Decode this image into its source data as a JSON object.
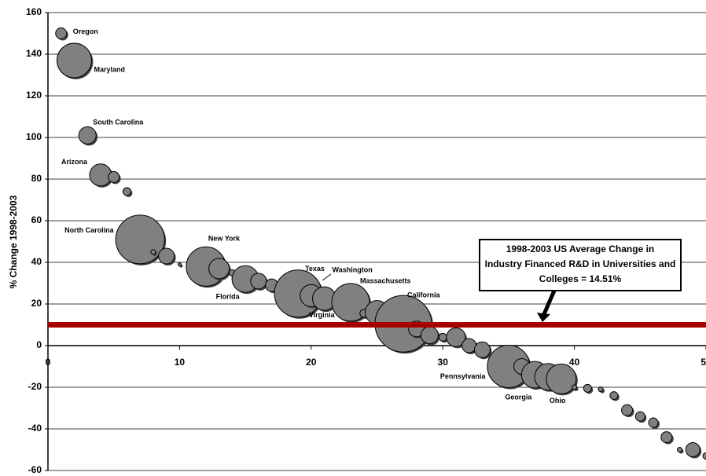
{
  "chart_data": {
    "type": "bubble",
    "y_label": "% Change 1998-2003",
    "x": [
      1,
      2,
      3,
      4,
      5,
      6,
      7,
      8,
      9,
      10,
      11,
      12,
      13,
      14,
      15,
      16,
      17,
      18,
      19,
      20,
      21,
      23,
      24,
      25,
      27,
      28,
      29,
      30,
      31,
      32,
      33,
      35,
      36,
      37,
      38,
      39,
      40,
      41,
      42,
      43,
      44,
      45,
      46,
      47,
      48,
      49,
      50
    ],
    "values": [
      150,
      137,
      101,
      82,
      81,
      74,
      51,
      45,
      43,
      39,
      38,
      38,
      37,
      35,
      32,
      31,
      29,
      28,
      25,
      24,
      22.6,
      20.8,
      15.5,
      16,
      10.5,
      8,
      5,
      4,
      4,
      0,
      -2,
      -10,
      -10,
      -14,
      -15,
      -16,
      -20,
      -20.5,
      -21,
      -24,
      -31,
      -34,
      -37,
      -44,
      -50,
      -50,
      -53
    ],
    "sizes": [
      7,
      22,
      11,
      14,
      7,
      5,
      31,
      3,
      10,
      2,
      8,
      25,
      13,
      4,
      17,
      10,
      8,
      10,
      30,
      14,
      15,
      24,
      5,
      15,
      36,
      10,
      11,
      5,
      12,
      9,
      10,
      27,
      10,
      17,
      17,
      19,
      3,
      5,
      3,
      5,
      7,
      6,
      6,
      7,
      3,
      9,
      4
    ],
    "labels": [
      "Oregon",
      "Maryland",
      "South Carolina",
      "Arizona",
      null,
      null,
      "North Carolina",
      null,
      null,
      null,
      null,
      "New York",
      "Florida",
      null,
      null,
      null,
      null,
      null,
      "Texas",
      "Virginia",
      "Washington",
      "Massachusetts",
      null,
      null,
      "California",
      null,
      null,
      null,
      null,
      null,
      null,
      "Pennsylvania",
      null,
      "Georgia",
      null,
      "Ohio",
      null,
      null,
      null,
      null,
      null,
      null,
      null,
      null,
      null,
      null,
      null
    ],
    "color": "#808080",
    "reference_line": {
      "value": 10,
      "color": "#a50000"
    },
    "annotation": [
      "1998-2003 US Average Change in",
      "Industry Financed R&D in Universities and",
      "Colleges = 14.51%"
    ],
    "xlim": [
      0,
      50
    ],
    "ylim": [
      -60,
      160
    ],
    "xticks": [
      0,
      10,
      20,
      30,
      40,
      50
    ],
    "yticks": [
      -60,
      -40,
      -20,
      0,
      20,
      40,
      60,
      80,
      100,
      120,
      140,
      160
    ],
    "grid": true
  }
}
